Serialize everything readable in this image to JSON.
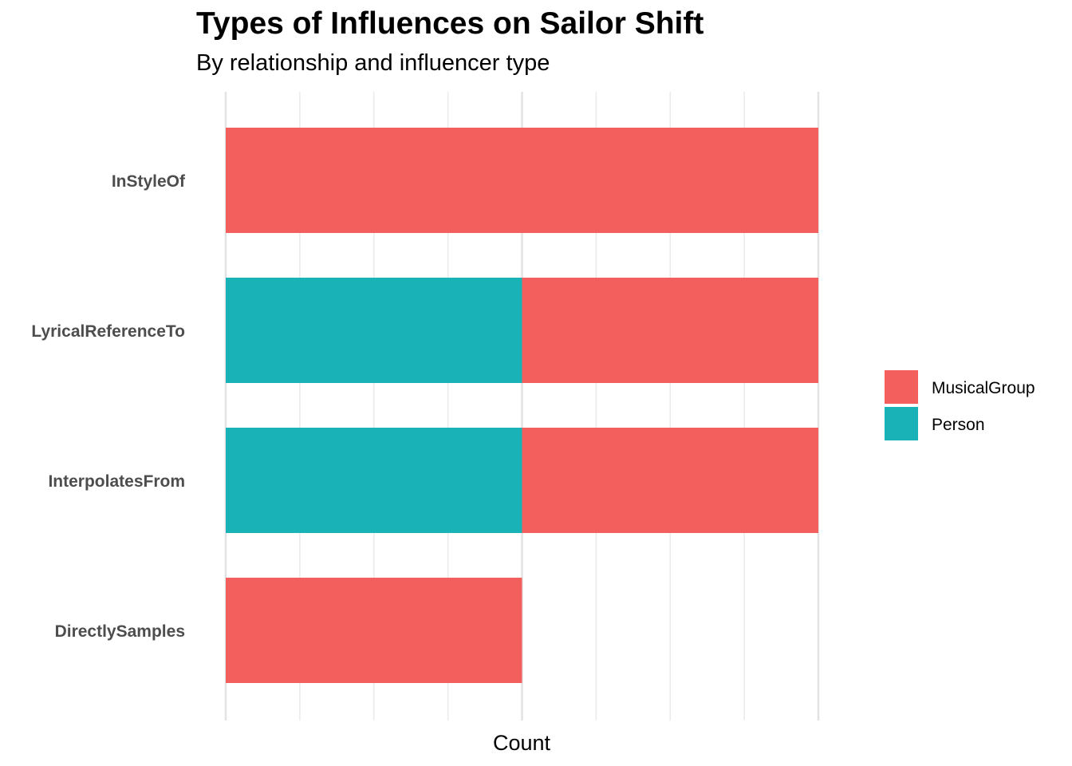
{
  "chart_data": {
    "type": "bar",
    "orientation": "horizontal",
    "stacked": true,
    "title": "Types of Influences on Sailor Shift",
    "subtitle": "By relationship and influencer type",
    "xlabel": "Count",
    "ylabel": "",
    "categories": [
      "InStyleOf",
      "LyricalReferenceTo",
      "InterpolatesFrom",
      "DirectlySamples"
    ],
    "series": [
      {
        "name": "Person",
        "color": "#19B3B7",
        "values": [
          0,
          1,
          1,
          0
        ]
      },
      {
        "name": "MusicalGroup",
        "color": "#F25F5C",
        "values": [
          2,
          1,
          1,
          1
        ]
      }
    ],
    "legend_order": [
      "MusicalGroup",
      "Person"
    ],
    "xlim": [
      0,
      2
    ],
    "x_tick_labels": "none",
    "grid": true,
    "legend_position": "right"
  }
}
